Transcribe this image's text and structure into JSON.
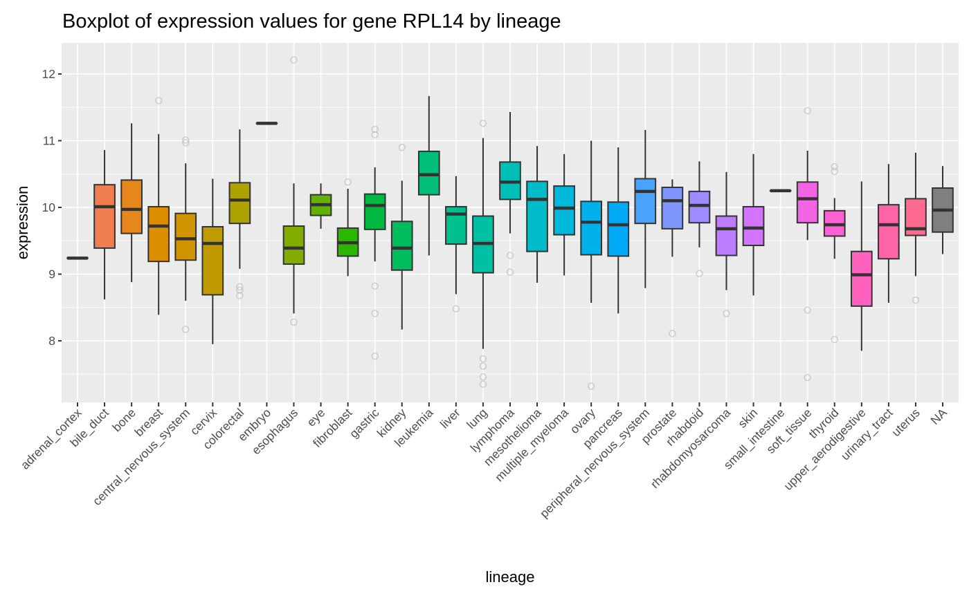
{
  "chart_data": {
    "type": "boxplot",
    "title": "Boxplot of expression values for gene RPL14 by lineage",
    "xlabel": "lineage",
    "ylabel": "expression",
    "ylim": [
      7.05,
      12.45
    ],
    "yticks": [
      8,
      9,
      10,
      11,
      12
    ],
    "grid": true,
    "legend": "none",
    "categories": [
      {
        "name": "adrenal_cortex",
        "color": "#F8766D",
        "min": 9.24,
        "q1": 9.24,
        "median": 9.24,
        "q3": 9.24,
        "max": 9.24,
        "outliers": []
      },
      {
        "name": "bile_duct",
        "color": "#F17E50",
        "min": 8.62,
        "q1": 9.39,
        "median": 10.01,
        "q3": 10.34,
        "max": 10.86,
        "outliers": []
      },
      {
        "name": "bone",
        "color": "#E7861A",
        "min": 8.88,
        "q1": 9.61,
        "median": 9.97,
        "q3": 10.41,
        "max": 11.26,
        "outliers": []
      },
      {
        "name": "breast",
        "color": "#DC8E00",
        "min": 8.39,
        "q1": 9.19,
        "median": 9.72,
        "q3": 10.01,
        "max": 11.1,
        "outliers": [
          11.6
        ]
      },
      {
        "name": "central_nervous_system",
        "color": "#CF9400",
        "min": 8.6,
        "q1": 9.21,
        "median": 9.53,
        "q3": 9.91,
        "max": 10.66,
        "outliers": [
          11.01,
          10.97,
          8.17
        ]
      },
      {
        "name": "cervix",
        "color": "#C09B00",
        "min": 7.95,
        "q1": 8.69,
        "median": 9.46,
        "q3": 9.71,
        "max": 10.43,
        "outliers": []
      },
      {
        "name": "colorectal",
        "color": "#AEA200",
        "min": 9.08,
        "q1": 9.76,
        "median": 10.11,
        "q3": 10.37,
        "max": 11.17,
        "outliers": [
          8.81,
          8.76,
          8.68
        ]
      },
      {
        "name": "embryo",
        "color": "#9AA800",
        "min": 11.26,
        "q1": 11.26,
        "median": 11.26,
        "q3": 11.26,
        "max": 11.26,
        "outliers": []
      },
      {
        "name": "esophagus",
        "color": "#82AD00",
        "min": 8.41,
        "q1": 9.15,
        "median": 9.39,
        "q3": 9.72,
        "max": 10.36,
        "outliers": [
          12.21,
          8.28
        ]
      },
      {
        "name": "eye",
        "color": "#63B200",
        "min": 9.68,
        "q1": 9.88,
        "median": 10.04,
        "q3": 10.19,
        "max": 10.36,
        "outliers": []
      },
      {
        "name": "fibroblast",
        "color": "#2BB600",
        "min": 8.97,
        "q1": 9.27,
        "median": 9.47,
        "q3": 9.69,
        "max": 10.28,
        "outliers": [
          10.38
        ]
      },
      {
        "name": "gastric",
        "color": "#00B940",
        "min": 9.19,
        "q1": 9.67,
        "median": 10.03,
        "q3": 10.2,
        "max": 10.6,
        "outliers": [
          11.17,
          11.09,
          8.82,
          8.41,
          7.77
        ]
      },
      {
        "name": "kidney",
        "color": "#00BC5E",
        "min": 8.17,
        "q1": 9.06,
        "median": 9.39,
        "q3": 9.79,
        "max": 10.4,
        "outliers": [
          10.9
        ]
      },
      {
        "name": "leukemia",
        "color": "#00BE78",
        "min": 9.28,
        "q1": 10.19,
        "median": 10.49,
        "q3": 10.84,
        "max": 11.67,
        "outliers": []
      },
      {
        "name": "liver",
        "color": "#00C08E",
        "min": 8.7,
        "q1": 9.45,
        "median": 9.9,
        "q3": 10.01,
        "max": 10.47,
        "outliers": [
          8.48
        ]
      },
      {
        "name": "lung",
        "color": "#00C0A3",
        "min": 7.88,
        "q1": 9.02,
        "median": 9.46,
        "q3": 9.87,
        "max": 11.04,
        "outliers": [
          11.26,
          7.73,
          7.62,
          7.46,
          7.35
        ]
      },
      {
        "name": "lymphoma",
        "color": "#00BFB7",
        "min": 9.61,
        "q1": 10.12,
        "median": 10.38,
        "q3": 10.68,
        "max": 11.43,
        "outliers": [
          9.28,
          9.03
        ]
      },
      {
        "name": "mesothelioma",
        "color": "#00BCC9",
        "min": 8.87,
        "q1": 9.34,
        "median": 10.12,
        "q3": 10.39,
        "max": 10.92,
        "outliers": []
      },
      {
        "name": "multiple_myeloma",
        "color": "#00B8DA",
        "min": 8.98,
        "q1": 9.59,
        "median": 9.99,
        "q3": 10.32,
        "max": 10.8,
        "outliers": []
      },
      {
        "name": "ovary",
        "color": "#00B2E9",
        "min": 8.57,
        "q1": 9.29,
        "median": 9.78,
        "q3": 10.09,
        "max": 11.0,
        "outliers": [
          7.32
        ]
      },
      {
        "name": "pancreas",
        "color": "#00AAF5",
        "min": 8.41,
        "q1": 9.27,
        "median": 9.74,
        "q3": 10.08,
        "max": 10.9,
        "outliers": []
      },
      {
        "name": "peripheral_nervous_system",
        "color": "#4AA2FF",
        "min": 8.79,
        "q1": 9.76,
        "median": 10.24,
        "q3": 10.43,
        "max": 11.16,
        "outliers": []
      },
      {
        "name": "prostate",
        "color": "#7F96FF",
        "min": 9.26,
        "q1": 9.68,
        "median": 10.1,
        "q3": 10.3,
        "max": 10.42,
        "outliers": [
          8.11
        ]
      },
      {
        "name": "rhabdoid",
        "color": "#A08AFF",
        "min": 9.4,
        "q1": 9.77,
        "median": 10.03,
        "q3": 10.24,
        "max": 10.69,
        "outliers": [
          9.01
        ]
      },
      {
        "name": "rhabdomyosarcoma",
        "color": "#BC7EFF",
        "min": 8.76,
        "q1": 9.28,
        "median": 9.68,
        "q3": 9.87,
        "max": 10.53,
        "outliers": [
          8.41
        ]
      },
      {
        "name": "skin",
        "color": "#D274FC",
        "min": 8.68,
        "q1": 9.43,
        "median": 9.69,
        "q3": 10.01,
        "max": 10.8,
        "outliers": []
      },
      {
        "name": "small_intestine",
        "color": "#E46BF2",
        "min": 10.25,
        "q1": 10.25,
        "median": 10.25,
        "q3": 10.25,
        "max": 10.25,
        "outliers": []
      },
      {
        "name": "soft_tissue",
        "color": "#F264E3",
        "min": 9.51,
        "q1": 9.77,
        "median": 10.13,
        "q3": 10.38,
        "max": 10.85,
        "outliers": [
          11.45,
          8.46,
          7.45
        ]
      },
      {
        "name": "thyroid",
        "color": "#FB61D2",
        "min": 9.23,
        "q1": 9.57,
        "median": 9.74,
        "q3": 9.95,
        "max": 10.14,
        "outliers": [
          10.61,
          10.54,
          8.02
        ]
      },
      {
        "name": "upper_aerodigestive",
        "color": "#FF61BE",
        "min": 7.85,
        "q1": 8.52,
        "median": 8.99,
        "q3": 9.34,
        "max": 10.39,
        "outliers": []
      },
      {
        "name": "urinary_tract",
        "color": "#FF64A8",
        "min": 8.57,
        "q1": 9.23,
        "median": 9.74,
        "q3": 10.04,
        "max": 10.65,
        "outliers": []
      },
      {
        "name": "uterus",
        "color": "#FF6A90",
        "min": 8.97,
        "q1": 9.58,
        "median": 9.68,
        "q3": 10.13,
        "max": 10.82,
        "outliers": [
          8.61
        ]
      },
      {
        "name": "NA",
        "color": "#7F7F7F",
        "min": 9.3,
        "q1": 9.63,
        "median": 9.96,
        "q3": 10.29,
        "max": 10.62,
        "outliers": []
      }
    ]
  }
}
